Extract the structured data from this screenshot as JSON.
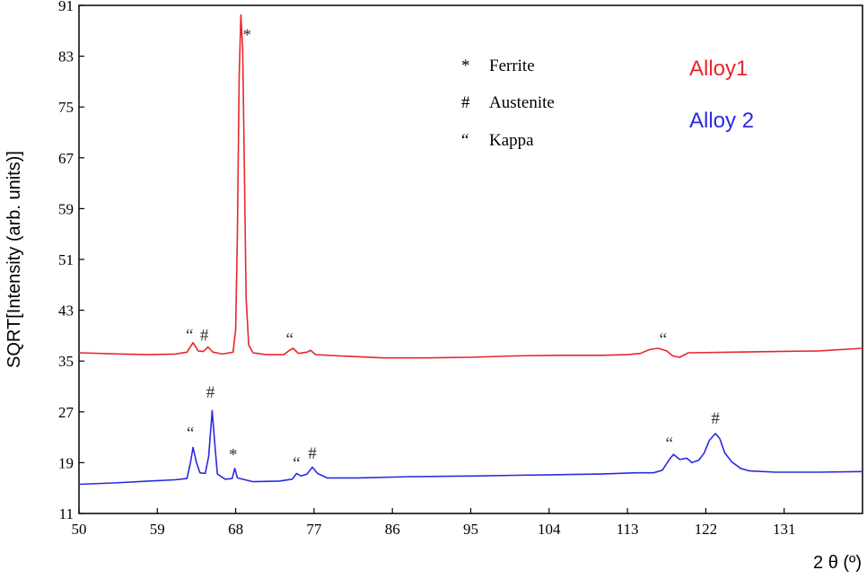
{
  "chart_data": {
    "type": "line",
    "xlabel": "2 θ (º)",
    "ylabel": "SQRT[Intensity (arb. units)]",
    "xlim": [
      50,
      140
    ],
    "ylim": [
      11,
      91
    ],
    "x_ticks": [
      50,
      59,
      68,
      77,
      86,
      95,
      104,
      113,
      122,
      131
    ],
    "y_ticks": [
      11,
      19,
      27,
      35,
      43,
      51,
      59,
      67,
      75,
      83,
      91
    ],
    "legend": [
      {
        "symbol": "*",
        "label": "Ferrite"
      },
      {
        "symbol": "#",
        "label": "Austenite"
      },
      {
        "symbol": "“",
        "label": "Kappa"
      }
    ],
    "series": [
      {
        "name": "Alloy1",
        "color": "#e8262b",
        "points": [
          [
            50,
            36.3
          ],
          [
            55,
            36.1
          ],
          [
            58,
            36.0
          ],
          [
            61,
            36.1
          ],
          [
            62.4,
            36.4
          ],
          [
            63.1,
            37.9
          ],
          [
            63.7,
            36.6
          ],
          [
            64.3,
            36.5
          ],
          [
            64.8,
            37.2
          ],
          [
            65.4,
            36.4
          ],
          [
            66.5,
            36.1
          ],
          [
            67.7,
            36.4
          ],
          [
            68.0,
            40
          ],
          [
            68.2,
            55
          ],
          [
            68.4,
            80
          ],
          [
            68.6,
            89.5
          ],
          [
            68.8,
            84
          ],
          [
            69.0,
            65
          ],
          [
            69.2,
            45
          ],
          [
            69.5,
            37.5
          ],
          [
            70.0,
            36.3
          ],
          [
            71.5,
            36.0
          ],
          [
            73.5,
            36.0
          ],
          [
            74.2,
            36.7
          ],
          [
            74.6,
            37.0
          ],
          [
            75.2,
            36.2
          ],
          [
            76.2,
            36.4
          ],
          [
            76.6,
            36.7
          ],
          [
            77.2,
            36.0
          ],
          [
            80,
            35.8
          ],
          [
            85,
            35.5
          ],
          [
            90,
            35.5
          ],
          [
            95,
            35.6
          ],
          [
            100,
            35.8
          ],
          [
            105,
            35.9
          ],
          [
            110,
            35.9
          ],
          [
            113,
            36.0
          ],
          [
            114.5,
            36.2
          ],
          [
            115.5,
            36.8
          ],
          [
            116.5,
            37.0
          ],
          [
            117.5,
            36.6
          ],
          [
            118.2,
            35.8
          ],
          [
            119,
            35.6
          ],
          [
            120,
            36.3
          ],
          [
            125,
            36.4
          ],
          [
            130,
            36.5
          ],
          [
            135,
            36.6
          ],
          [
            140,
            37.0
          ]
        ]
      },
      {
        "name": "Alloy 2",
        "color": "#2a2ae0",
        "points": [
          [
            50,
            15.6
          ],
          [
            54,
            15.8
          ],
          [
            58,
            16.1
          ],
          [
            61,
            16.3
          ],
          [
            62.4,
            16.5
          ],
          [
            62.8,
            19
          ],
          [
            63.1,
            21.4
          ],
          [
            63.5,
            19
          ],
          [
            63.9,
            17.4
          ],
          [
            64.5,
            17.3
          ],
          [
            64.9,
            20
          ],
          [
            65.3,
            27.2
          ],
          [
            65.6,
            22
          ],
          [
            65.9,
            17.2
          ],
          [
            66.8,
            16.4
          ],
          [
            67.6,
            16.5
          ],
          [
            67.9,
            18.1
          ],
          [
            68.2,
            16.6
          ],
          [
            70,
            16.0
          ],
          [
            73,
            16.1
          ],
          [
            74.5,
            16.4
          ],
          [
            75.0,
            17.3
          ],
          [
            75.5,
            16.9
          ],
          [
            76.2,
            17.2
          ],
          [
            76.8,
            18.3
          ],
          [
            77.4,
            17.3
          ],
          [
            78.5,
            16.6
          ],
          [
            82,
            16.6
          ],
          [
            88,
            16.8
          ],
          [
            95,
            16.9
          ],
          [
            100,
            17.0
          ],
          [
            105,
            17.1
          ],
          [
            110,
            17.2
          ],
          [
            114,
            17.4
          ],
          [
            116,
            17.4
          ],
          [
            117,
            17.8
          ],
          [
            117.8,
            19.5
          ],
          [
            118.3,
            20.3
          ],
          [
            119,
            19.5
          ],
          [
            119.8,
            19.7
          ],
          [
            120.4,
            19.0
          ],
          [
            121.2,
            19.4
          ],
          [
            121.8,
            20.5
          ],
          [
            122.4,
            22.5
          ],
          [
            123.1,
            23.6
          ],
          [
            123.6,
            22.8
          ],
          [
            124.2,
            20.5
          ],
          [
            125,
            19.1
          ],
          [
            126,
            18.1
          ],
          [
            127,
            17.7
          ],
          [
            130,
            17.5
          ],
          [
            135,
            17.5
          ],
          [
            140,
            17.6
          ]
        ]
      }
    ],
    "peak_annotations": [
      {
        "symbol": "*",
        "x": 69.3,
        "y": 85.5
      },
      {
        "symbol": "“",
        "x": 62.7,
        "y": 38.2
      },
      {
        "symbol": "#",
        "x": 64.4,
        "y": 38.2
      },
      {
        "symbol": "“",
        "x": 74.2,
        "y": 37.6
      },
      {
        "symbol": "“",
        "x": 117.1,
        "y": 37.6
      },
      {
        "symbol": "“",
        "x": 62.8,
        "y": 22.8
      },
      {
        "symbol": "#",
        "x": 65.1,
        "y": 29.2
      },
      {
        "symbol": "*",
        "x": 67.7,
        "y": 19.4
      },
      {
        "symbol": "“",
        "x": 75.0,
        "y": 18.1
      },
      {
        "symbol": "#",
        "x": 76.8,
        "y": 19.6
      },
      {
        "symbol": "“",
        "x": 117.8,
        "y": 21.2
      },
      {
        "symbol": "#",
        "x": 123.1,
        "y": 25.1
      }
    ]
  }
}
